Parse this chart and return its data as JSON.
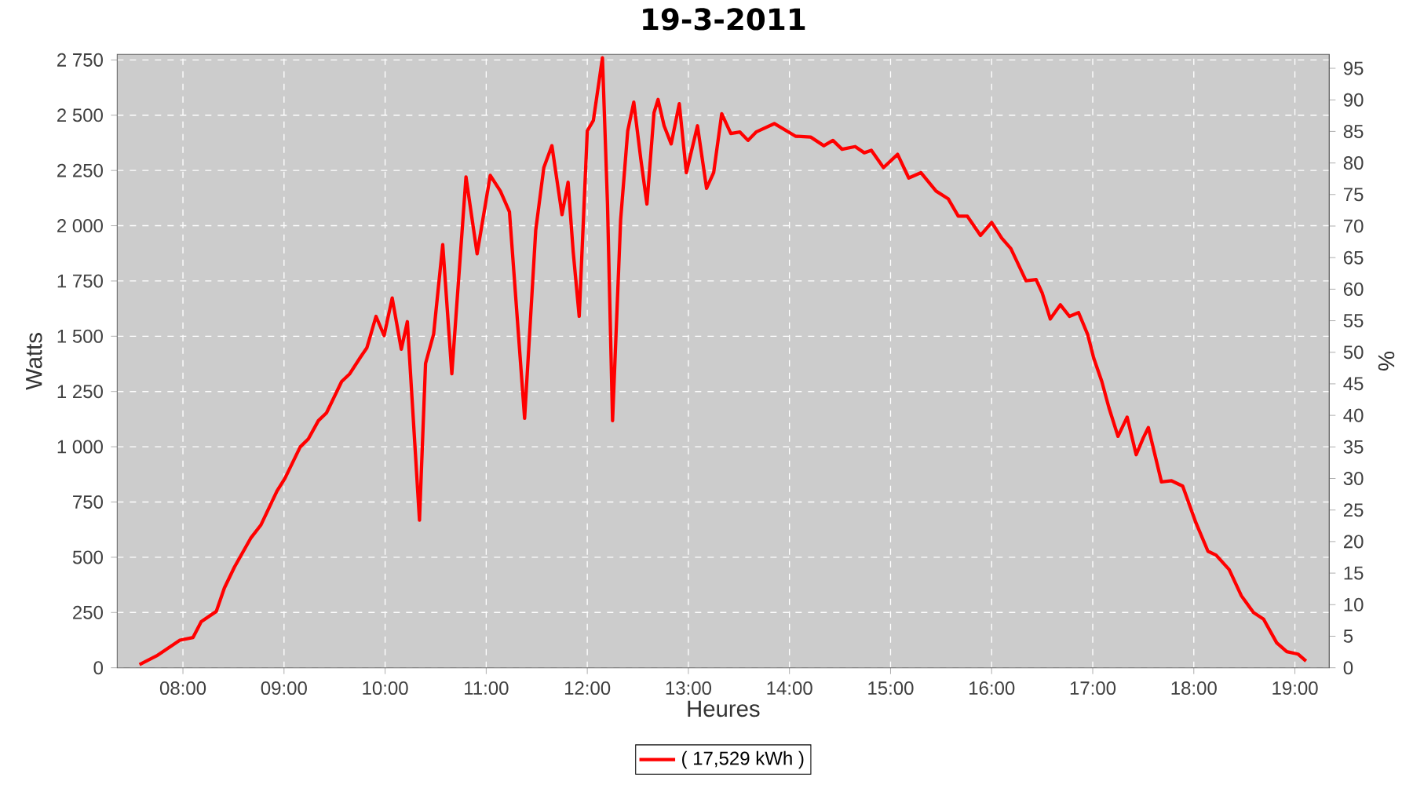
{
  "chart_data": {
    "type": "line",
    "title": "19-3-2011",
    "xlabel": "Heures",
    "ylabel": "Watts",
    "y2label": "%",
    "x": [
      7.57,
      7.74,
      7.97,
      8.1,
      8.18,
      8.33,
      8.41,
      8.51,
      8.67,
      8.77,
      8.93,
      9.01,
      9.16,
      9.24,
      9.34,
      9.42,
      9.57,
      9.65,
      9.76,
      9.82,
      9.91,
      9.99,
      10.07,
      10.16,
      10.22,
      10.34,
      10.4,
      10.48,
      10.57,
      10.66,
      10.8,
      10.91,
      11.04,
      11.14,
      11.23,
      11.38,
      11.49,
      11.57,
      11.65,
      11.75,
      11.81,
      11.86,
      11.92,
      12.0,
      12.06,
      12.15,
      12.2,
      12.25,
      12.33,
      12.4,
      12.46,
      12.53,
      12.59,
      12.66,
      12.7,
      12.76,
      12.83,
      12.91,
      12.98,
      13.09,
      13.18,
      13.25,
      13.33,
      13.42,
      13.51,
      13.59,
      13.67,
      13.85,
      14.06,
      14.21,
      14.34,
      14.43,
      14.52,
      14.65,
      14.74,
      14.81,
      14.93,
      15.07,
      15.18,
      15.3,
      15.45,
      15.57,
      15.67,
      15.76,
      15.89,
      16.0,
      16.1,
      16.19,
      16.34,
      16.44,
      16.5,
      16.58,
      16.68,
      16.77,
      16.86,
      16.95,
      17.01,
      17.09,
      17.16,
      17.25,
      17.34,
      17.43,
      17.5,
      17.55,
      17.68,
      17.78,
      17.89,
      18.02,
      18.14,
      18.22,
      18.35,
      18.47,
      18.59,
      18.69,
      18.82,
      18.92,
      19.03,
      19.11
    ],
    "series": [
      {
        "name": "( 17,529 kWh )",
        "color": "#ff0000",
        "values": [
          14,
          54,
          125,
          137,
          208,
          255,
          361,
          456,
          586,
          645,
          799,
          858,
          999,
          1035,
          1118,
          1153,
          1295,
          1330,
          1408,
          1448,
          1590,
          1503,
          1673,
          1441,
          1566,
          668,
          1377,
          1510,
          1914,
          1330,
          2221,
          1873,
          2228,
          2157,
          2063,
          1129,
          1980,
          2263,
          2362,
          2050,
          2197,
          1885,
          1590,
          2429,
          2476,
          2760,
          2098,
          1118,
          2027,
          2429,
          2559,
          2299,
          2098,
          2511,
          2571,
          2452,
          2370,
          2552,
          2240,
          2452,
          2169,
          2240,
          2507,
          2417,
          2424,
          2386,
          2424,
          2462,
          2405,
          2401,
          2362,
          2386,
          2346,
          2358,
          2330,
          2341,
          2263,
          2323,
          2216,
          2240,
          2157,
          2122,
          2043,
          2043,
          1956,
          2015,
          1944,
          1897,
          1751,
          1756,
          1696,
          1578,
          1642,
          1590,
          1607,
          1508,
          1401,
          1295,
          1177,
          1047,
          1134,
          964,
          1040,
          1087,
          841,
          846,
          822,
          657,
          527,
          510,
          444,
          326,
          250,
          220,
          113,
          73,
          62,
          30
        ]
      }
    ],
    "xlim": [
      7.35,
      19.34
    ],
    "ylim": [
      0,
      2775
    ],
    "y2lim": [
      0,
      97.2
    ],
    "xticks": [
      {
        "value": 8,
        "label": "08:00"
      },
      {
        "value": 9,
        "label": "09:00"
      },
      {
        "value": 10,
        "label": "10:00"
      },
      {
        "value": 11,
        "label": "11:00"
      },
      {
        "value": 12,
        "label": "12:00"
      },
      {
        "value": 13,
        "label": "13:00"
      },
      {
        "value": 14,
        "label": "14:00"
      },
      {
        "value": 15,
        "label": "15:00"
      },
      {
        "value": 16,
        "label": "16:00"
      },
      {
        "value": 17,
        "label": "17:00"
      },
      {
        "value": 18,
        "label": "18:00"
      },
      {
        "value": 19,
        "label": "19:00"
      }
    ],
    "yticks": [
      0,
      250,
      500,
      750,
      {
        "value": 1000,
        "label": "1 000"
      },
      {
        "value": 1250,
        "label": "1 250"
      },
      {
        "value": 1500,
        "label": "1 500"
      },
      {
        "value": 1750,
        "label": "1 750"
      },
      {
        "value": 2000,
        "label": "2 000"
      },
      {
        "value": 2250,
        "label": "2 250"
      },
      {
        "value": 2500,
        "label": "2 500"
      },
      {
        "value": 2750,
        "label": "2 750"
      }
    ],
    "y2ticks": [
      0,
      5,
      10,
      15,
      20,
      25,
      30,
      35,
      40,
      45,
      50,
      55,
      60,
      65,
      70,
      75,
      80,
      85,
      90,
      95
    ],
    "grid": true,
    "legend": "bottom",
    "marker": "none",
    "line_style": "solid"
  }
}
